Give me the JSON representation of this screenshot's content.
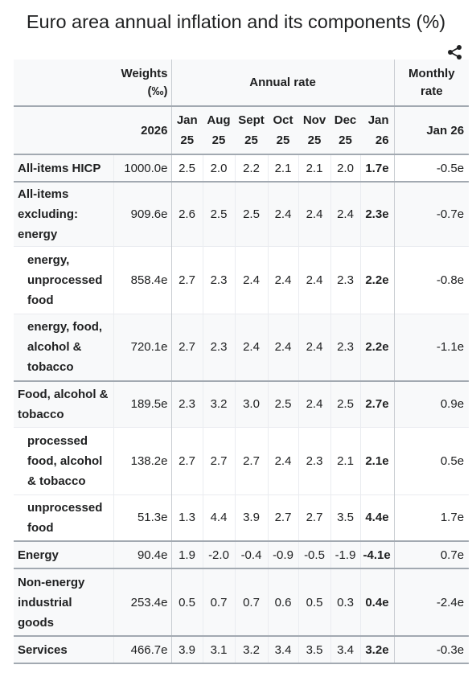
{
  "title": "Euro area annual inflation and its components (%)",
  "share_icon": "share-icon",
  "header": {
    "weights": "Weights (‰)",
    "annual_rate": "Annual rate",
    "monthly_rate": "Monthly rate",
    "weights_year": "2026",
    "months": [
      "Jan 25",
      "Aug 25",
      "Sept 25",
      "Oct 25",
      "Nov 25",
      "Dec 25",
      "Jan 26"
    ],
    "monthly_month": "Jan 26"
  },
  "rows": [
    {
      "label": "All-items HICP",
      "weight": "1000.0e",
      "values": [
        "2.5",
        "2.0",
        "2.2",
        "2.1",
        "2.1",
        "2.0",
        "1.7e"
      ],
      "monthly": "-0.5e"
    },
    {
      "label": "All-items excluding: energy",
      "weight": "909.6e",
      "values": [
        "2.6",
        "2.5",
        "2.5",
        "2.4",
        "2.4",
        "2.4",
        "2.3e"
      ],
      "monthly": "-0.7e"
    },
    {
      "label": "energy, unprocessed food",
      "weight": "858.4e",
      "values": [
        "2.7",
        "2.3",
        "2.4",
        "2.4",
        "2.4",
        "2.3",
        "2.2e"
      ],
      "monthly": "-0.8e"
    },
    {
      "label": "energy, food, alcohol & tobacco",
      "weight": "720.1e",
      "values": [
        "2.7",
        "2.3",
        "2.4",
        "2.4",
        "2.4",
        "2.3",
        "2.2e"
      ],
      "monthly": "-1.1e"
    },
    {
      "label": "Food, alcohol & tobacco",
      "weight": "189.5e",
      "values": [
        "2.3",
        "3.2",
        "3.0",
        "2.5",
        "2.4",
        "2.5",
        "2.7e"
      ],
      "monthly": "0.9e"
    },
    {
      "label": "processed food, alcohol & tobacco",
      "weight": "138.2e",
      "values": [
        "2.7",
        "2.7",
        "2.7",
        "2.4",
        "2.3",
        "2.1",
        "2.1e"
      ],
      "monthly": "0.5e"
    },
    {
      "label": "unprocessed food",
      "weight": "51.3e",
      "values": [
        "1.3",
        "4.4",
        "3.9",
        "2.7",
        "2.7",
        "3.5",
        "4.4e"
      ],
      "monthly": "1.7e"
    },
    {
      "label": "Energy",
      "weight": "90.4e",
      "values": [
        "1.9",
        "-2.0",
        "-0.4",
        "-0.9",
        "-0.5",
        "-1.9",
        "-4.1e"
      ],
      "monthly": "0.7e"
    },
    {
      "label": "Non-energy industrial goods",
      "weight": "253.4e",
      "values": [
        "0.5",
        "0.7",
        "0.7",
        "0.6",
        "0.5",
        "0.3",
        "0.4e"
      ],
      "monthly": "-2.4e"
    },
    {
      "label": "Services",
      "weight": "466.7e",
      "values": [
        "3.9",
        "3.1",
        "3.2",
        "3.4",
        "3.5",
        "3.4",
        "3.2e"
      ],
      "monthly": "-0.3e"
    }
  ]
}
